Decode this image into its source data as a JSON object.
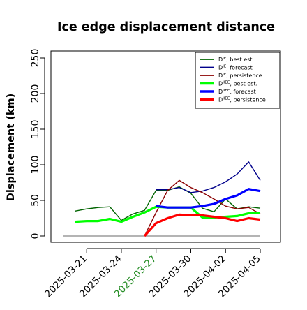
{
  "chart_data": {
    "type": "line",
    "title": "Ice edge displacement distance",
    "xlabel": "",
    "ylabel": "Displacement (km)",
    "ylim": [
      0,
      250
    ],
    "yticks": [
      0,
      50,
      100,
      150,
      200,
      250
    ],
    "xlim": [
      "2025-03-19",
      "2025-04-05"
    ],
    "xticks": [
      "2025-03-21",
      "2025-03-24",
      "2025-03-27",
      "2025-03-30",
      "2025-04-02",
      "2025-04-05"
    ],
    "highlighted_xtick": "2025-03-27",
    "highlight_color": "#228b22",
    "grid": false,
    "legend_position": "top-right",
    "baseline": 0,
    "baseline_color": "#888888",
    "series": [
      {
        "name": "D^IE, best est.",
        "legend_main": "D",
        "legend_sup": "IE",
        "legend_suffix": ", best est.",
        "color": "#006400",
        "width": 1.4,
        "x": [
          "2025-03-20",
          "2025-03-21",
          "2025-03-22",
          "2025-03-23",
          "2025-03-24",
          "2025-03-25",
          "2025-03-26",
          "2025-03-27",
          "2025-03-28",
          "2025-03-29",
          "2025-03-30",
          "2025-03-31",
          "2025-04-01",
          "2025-04-02",
          "2025-04-03",
          "2025-04-04",
          "2025-04-05"
        ],
        "values": [
          35,
          38,
          40,
          41,
          22,
          31,
          36,
          64,
          64,
          69,
          60,
          39,
          34,
          52,
          38,
          41,
          39
        ]
      },
      {
        "name": "D^IE, forecast",
        "legend_main": "D",
        "legend_sup": "IE",
        "legend_suffix": ", forecast",
        "color": "#00008b",
        "width": 1.4,
        "x": [
          "2025-03-27",
          "2025-03-28",
          "2025-03-29",
          "2025-03-30",
          "2025-03-31",
          "2025-04-01",
          "2025-04-02",
          "2025-04-03",
          "2025-04-04",
          "2025-04-05"
        ],
        "values": [
          65,
          65,
          68,
          61,
          63,
          68,
          76,
          87,
          104,
          78
        ]
      },
      {
        "name": "D^IE, persistence",
        "legend_main": "D",
        "legend_sup": "IE",
        "legend_suffix": ", persistence",
        "color": "#8b0000",
        "width": 1.4,
        "x": [
          "2025-03-26",
          "2025-03-27",
          "2025-03-28",
          "2025-03-29",
          "2025-03-30",
          "2025-03-31",
          "2025-04-01",
          "2025-04-02",
          "2025-04-03",
          "2025-04-04",
          "2025-04-05"
        ],
        "values": [
          0,
          33,
          64,
          78,
          68,
          61,
          52,
          42,
          38,
          40,
          31
        ]
      },
      {
        "name": "D^IIEE, best est.",
        "legend_main": "D",
        "legend_sup": "IIEE",
        "legend_suffix": ", best est.",
        "color": "#00ff00",
        "width": 3.2,
        "x": [
          "2025-03-20",
          "2025-03-21",
          "2025-03-22",
          "2025-03-23",
          "2025-03-24",
          "2025-03-25",
          "2025-03-26",
          "2025-03-27",
          "2025-03-28",
          "2025-03-29",
          "2025-03-30",
          "2025-03-31",
          "2025-04-01",
          "2025-04-02",
          "2025-04-03",
          "2025-04-04",
          "2025-04-05"
        ],
        "values": [
          20,
          21,
          21,
          24,
          20,
          27,
          33,
          41,
          40,
          40,
          40,
          26,
          26,
          27,
          28,
          32,
          32
        ]
      },
      {
        "name": "D^IIEE, forecast",
        "legend_main": "D",
        "legend_sup": "IIEE",
        "legend_suffix": ", forecast",
        "color": "#0000ff",
        "width": 3.2,
        "x": [
          "2025-03-27",
          "2025-03-28",
          "2025-03-29",
          "2025-03-30",
          "2025-03-31",
          "2025-04-01",
          "2025-04-02",
          "2025-04-03",
          "2025-04-04",
          "2025-04-05"
        ],
        "values": [
          42,
          40,
          40,
          40,
          42,
          45,
          52,
          57,
          66,
          63
        ]
      },
      {
        "name": "D^IIEE, persistence",
        "legend_main": "D",
        "legend_sup": "IIEE",
        "legend_suffix": ", persistence",
        "color": "#ff0000",
        "width": 3.2,
        "x": [
          "2025-03-26",
          "2025-03-27",
          "2025-03-28",
          "2025-03-29",
          "2025-03-30",
          "2025-03-31",
          "2025-04-01",
          "2025-04-02",
          "2025-04-03",
          "2025-04-04",
          "2025-04-05"
        ],
        "values": [
          0,
          18,
          25,
          30,
          29,
          29,
          27,
          25,
          21,
          25,
          23
        ]
      }
    ]
  }
}
